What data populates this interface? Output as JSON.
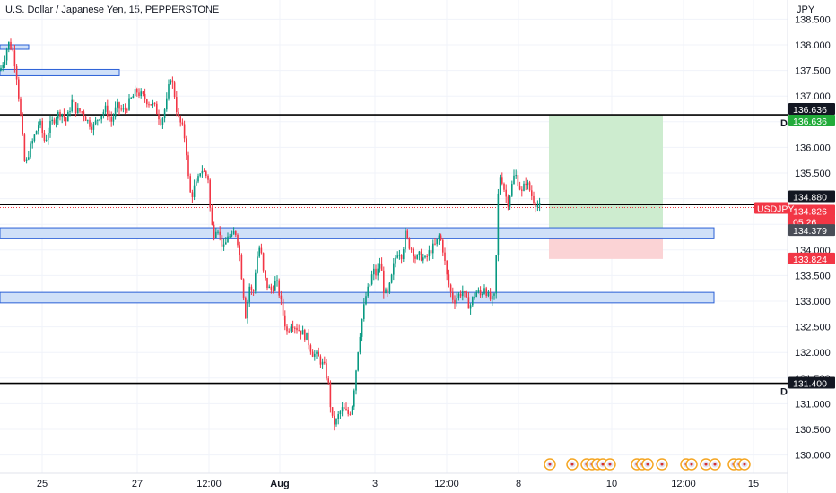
{
  "header": {
    "title": "U.S. Dollar / Japanese Yen, 15, PEPPERSTONE"
  },
  "colors": {
    "up": "#089981",
    "down": "#f23645",
    "zone_fill": "#cfe0f8",
    "zone_stroke": "#2a5fd6",
    "target_fill": "#cdeccf",
    "stop_fill": "#fbd3d5",
    "level_line": "#000000"
  },
  "chart_data": {
    "type": "candlestick",
    "title": "U.S. Dollar / Japanese Yen, 15, PEPPERSTONE",
    "symbol": "USDJPY",
    "y_unit": "JPY",
    "ylim": [
      129.75,
      138.75
    ],
    "y_ticks": [
      "138.500",
      "138.000",
      "137.500",
      "137.000",
      "136.500",
      "136.000",
      "135.500",
      "135.000",
      "134.500",
      "134.000",
      "133.500",
      "133.000",
      "132.500",
      "132.000",
      "131.500",
      "131.000",
      "130.500",
      "130.000"
    ],
    "x_ticks": [
      "25",
      "27",
      "12:00",
      "Aug",
      "3",
      "12:00",
      "8",
      "10",
      "12:00",
      "15"
    ],
    "price_path": [
      [
        0,
        137.5
      ],
      [
        6,
        137.8
      ],
      [
        9,
        138.05
      ],
      [
        14,
        137.9
      ],
      [
        18,
        137.5
      ],
      [
        22,
        136.8
      ],
      [
        25,
        136.2
      ],
      [
        28,
        135.6
      ],
      [
        32,
        135.9
      ],
      [
        38,
        136.2
      ],
      [
        44,
        136.5
      ],
      [
        50,
        136.1
      ],
      [
        55,
        136.4
      ],
      [
        62,
        136.6
      ],
      [
        68,
        136.7
      ],
      [
        74,
        136.5
      ],
      [
        80,
        136.9
      ],
      [
        86,
        136.7
      ],
      [
        92,
        136.7
      ],
      [
        98,
        136.5
      ],
      [
        104,
        136.4
      ],
      [
        110,
        136.6
      ],
      [
        118,
        136.75
      ],
      [
        124,
        136.5
      ],
      [
        130,
        136.8
      ],
      [
        138,
        136.7
      ],
      [
        145,
        136.9
      ],
      [
        152,
        137.1
      ],
      [
        158,
        137.0
      ],
      [
        165,
        136.9
      ],
      [
        172,
        136.8
      ],
      [
        180,
        136.5
      ],
      [
        186,
        136.9
      ],
      [
        190,
        137.4
      ],
      [
        194,
        137.1
      ],
      [
        198,
        136.6
      ],
      [
        203,
        136.4
      ],
      [
        207,
        136.1
      ],
      [
        210,
        135.4
      ],
      [
        213,
        135.0
      ],
      [
        216,
        135.2
      ],
      [
        220,
        135.3
      ],
      [
        224,
        135.6
      ],
      [
        228,
        135.5
      ],
      [
        232,
        135.4
      ],
      [
        235,
        134.6
      ],
      [
        238,
        134.3
      ],
      [
        242,
        134.5
      ],
      [
        246,
        134.2
      ],
      [
        250,
        134.0
      ],
      [
        254,
        134.3
      ],
      [
        258,
        134.2
      ],
      [
        262,
        134.4
      ],
      [
        266,
        134.1
      ],
      [
        270,
        133.4
      ],
      [
        274,
        132.7
      ],
      [
        278,
        133.3
      ],
      [
        282,
        133.1
      ],
      [
        286,
        133.8
      ],
      [
        290,
        134.1
      ],
      [
        294,
        133.5
      ],
      [
        298,
        133.3
      ],
      [
        302,
        133.2
      ],
      [
        308,
        133.4
      ],
      [
        312,
        133.1
      ],
      [
        316,
        132.7
      ],
      [
        320,
        132.4
      ],
      [
        325,
        132.6
      ],
      [
        330,
        132.5
      ],
      [
        336,
        132.4
      ],
      [
        342,
        132.3
      ],
      [
        348,
        132.0
      ],
      [
        355,
        131.9
      ],
      [
        362,
        131.7
      ],
      [
        366,
        131.4
      ],
      [
        370,
        130.7
      ],
      [
        374,
        130.6
      ],
      [
        378,
        130.8
      ],
      [
        382,
        130.9
      ],
      [
        388,
        130.8
      ],
      [
        392,
        130.9
      ],
      [
        396,
        131.5
      ],
      [
        400,
        132.2
      ],
      [
        404,
        132.7
      ],
      [
        408,
        133.1
      ],
      [
        412,
        133.3
      ],
      [
        416,
        133.6
      ],
      [
        420,
        133.5
      ],
      [
        424,
        133.8
      ],
      [
        428,
        133.2
      ],
      [
        432,
        133.1
      ],
      [
        436,
        133.4
      ],
      [
        440,
        133.8
      ],
      [
        444,
        134.0
      ],
      [
        448,
        133.9
      ],
      [
        452,
        134.3
      ],
      [
        456,
        134.1
      ],
      [
        460,
        134.0
      ],
      [
        464,
        133.8
      ],
      [
        468,
        133.9
      ],
      [
        474,
        133.8
      ],
      [
        480,
        134.0
      ],
      [
        486,
        134.1
      ],
      [
        490,
        134.3
      ],
      [
        494,
        134.0
      ],
      [
        498,
        133.5
      ],
      [
        502,
        133.2
      ],
      [
        506,
        133.0
      ],
      [
        510,
        133.1
      ],
      [
        516,
        133.2
      ],
      [
        520,
        133.0
      ],
      [
        524,
        132.9
      ],
      [
        528,
        133.1
      ],
      [
        532,
        133.2
      ],
      [
        536,
        133.1
      ],
      [
        540,
        133.3
      ],
      [
        544,
        133.1
      ],
      [
        548,
        133.0
      ],
      [
        552,
        133.1
      ],
      [
        555,
        135.0
      ],
      [
        558,
        135.5
      ],
      [
        562,
        135.2
      ],
      [
        566,
        134.9
      ],
      [
        570,
        135.2
      ],
      [
        574,
        135.5
      ],
      [
        578,
        135.3
      ],
      [
        582,
        135.1
      ],
      [
        586,
        135.35
      ],
      [
        590,
        135.2
      ],
      [
        594,
        135.0
      ],
      [
        598,
        134.9
      ],
      [
        602,
        134.826
      ]
    ],
    "horizontal_levels": [
      {
        "price": 136.636,
        "label": "136.636",
        "marker": "D"
      },
      {
        "price": 131.4,
        "label": "131.400",
        "marker": "D"
      }
    ],
    "current_price_line": 134.88,
    "zones": [
      {
        "low": 134.27,
        "high": 134.38
      },
      {
        "low": 133.02,
        "high": 133.12
      }
    ],
    "top_left_boxes": [
      {
        "price_low": 137.96,
        "price_high": 138.0
      },
      {
        "price_low": 137.46,
        "price_high": 137.52
      }
    ],
    "position": {
      "target": 136.636,
      "entry": 134.379,
      "stop": 133.824
    },
    "price_tags": [
      {
        "label": "136.636",
        "color": "black",
        "price": 136.636,
        "offset": -6
      },
      {
        "label": "136.636",
        "color": "green",
        "price": 136.636,
        "offset": 7
      },
      {
        "label": "134.880",
        "color": "black",
        "price": 134.88,
        "offset": -9
      },
      {
        "label": "134.826",
        "color": "red",
        "price": 134.826,
        "offset": 4
      },
      {
        "label": "05:26",
        "color": "red",
        "price": 134.826,
        "offset": 16
      },
      {
        "label": "134.379",
        "color": "gray",
        "price": 134.379,
        "offset": 0
      },
      {
        "label": "133.824",
        "color": "red",
        "price": 133.824,
        "offset": 0
      },
      {
        "label": "131.400",
        "color": "black",
        "price": 131.4,
        "offset": 0
      }
    ],
    "symbol_tag": "USDJPY",
    "grid": true
  }
}
